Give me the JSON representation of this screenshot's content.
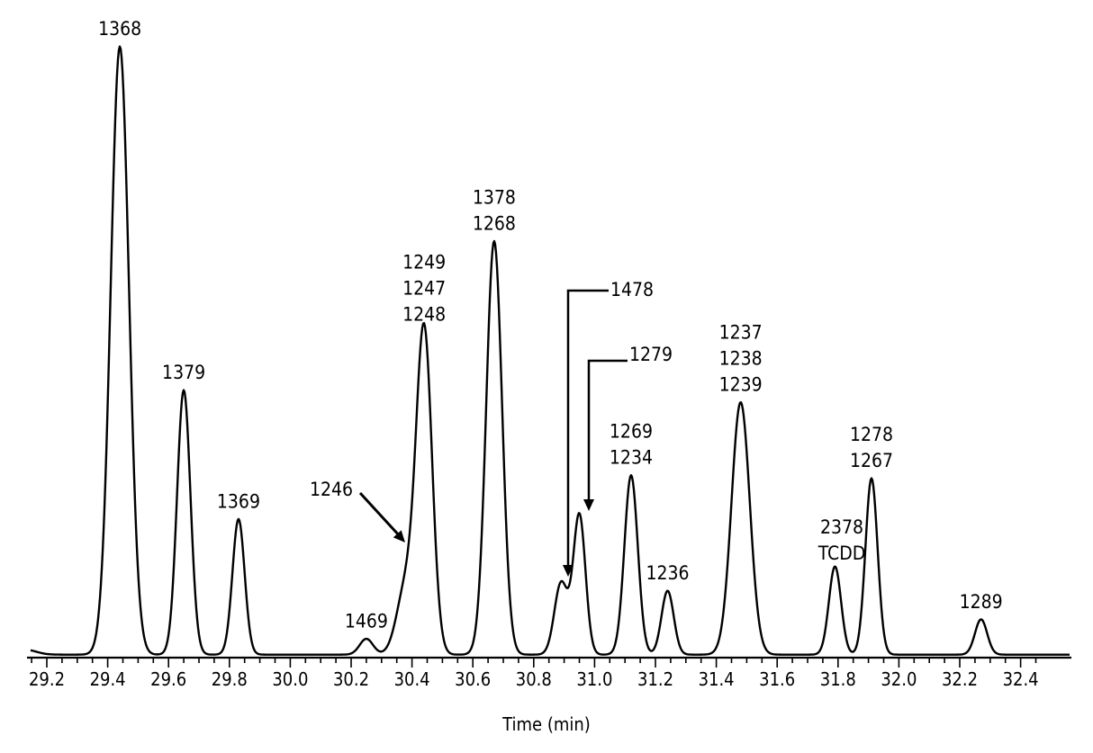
{
  "chart_data": {
    "type": "line",
    "title": "",
    "xlabel": "Time (min)",
    "ylabel": "",
    "xlim": [
      29.0,
      32.5
    ],
    "ylim": [
      0,
      1
    ],
    "x_ticks": [
      "29.2",
      "29.4",
      "29.6",
      "29.8",
      "30.0",
      "30.2",
      "30.4",
      "30.6",
      "30.8",
      "31.0",
      "31.2",
      "31.4",
      "31.6",
      "31.8",
      "32.0",
      "32.2",
      "32.4"
    ],
    "grid": false,
    "legend": "none",
    "trace_color": "#000000",
    "highlight_color": "#e0202a",
    "series": [
      {
        "peaks": [
          {
            "x": 29.13,
            "y": 0.008,
            "labels": []
          },
          {
            "x": 29.44,
            "y": 1.0,
            "labels": [
              "1368"
            ]
          },
          {
            "x": 29.65,
            "y": 0.435,
            "labels": [
              "1379"
            ]
          },
          {
            "x": 29.83,
            "y": 0.223,
            "labels": [
              "1369"
            ]
          },
          {
            "x": 30.25,
            "y": 0.026,
            "labels": [
              "1469"
            ]
          },
          {
            "x": 30.38,
            "y": 0.11,
            "labels": [
              "1246"
            ]
          },
          {
            "x": 30.44,
            "y": 0.53,
            "labels": [
              "1249",
              "1247",
              "1248"
            ]
          },
          {
            "x": 30.67,
            "y": 0.68,
            "labels": [
              "1378",
              "1268"
            ]
          },
          {
            "x": 30.89,
            "y": 0.118,
            "labels": [
              "1478"
            ]
          },
          {
            "x": 30.95,
            "y": 0.23,
            "labels": [
              "1279"
            ]
          },
          {
            "x": 31.12,
            "y": 0.295,
            "labels": [
              "1269",
              "1234"
            ]
          },
          {
            "x": 31.24,
            "y": 0.105,
            "labels": [
              "1236"
            ]
          },
          {
            "x": 31.48,
            "y": 0.415,
            "labels": [
              "1237",
              "1238",
              "1239"
            ]
          },
          {
            "x": 31.79,
            "y": 0.145,
            "labels": [
              "2378",
              "TCDD"
            ],
            "highlight": true
          },
          {
            "x": 31.91,
            "y": 0.29,
            "labels": [
              "1278",
              "1267"
            ]
          },
          {
            "x": 32.27,
            "y": 0.058,
            "labels": [
              "1289"
            ]
          }
        ]
      }
    ]
  }
}
